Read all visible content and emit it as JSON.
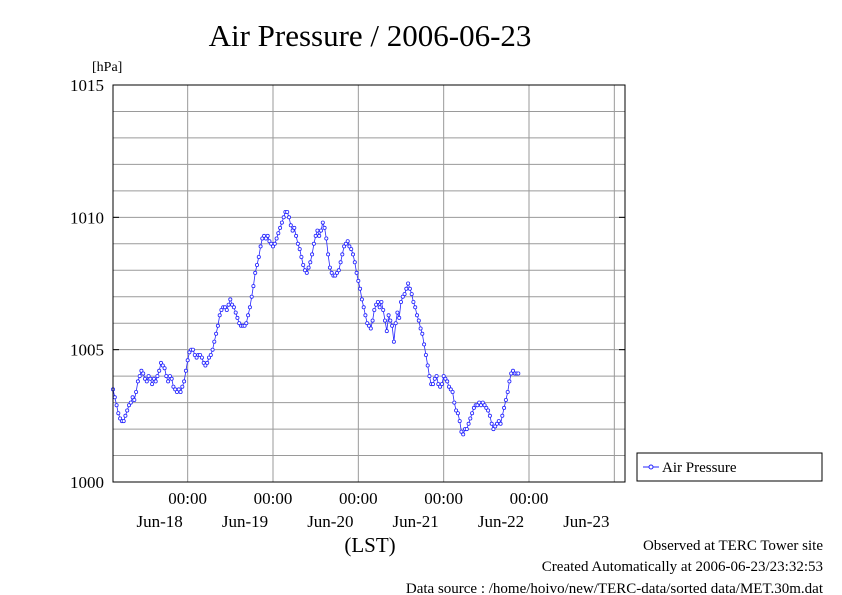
{
  "colors": {
    "series": "#2424ff",
    "grid": "#9a9a9a",
    "axis": "#000000"
  },
  "chart_data": {
    "type": "line",
    "title": "Air Pressure / 2006-06-23",
    "yunit": "[hPa]",
    "xlabel": "(LST)",
    "ylim": [
      1000,
      1015
    ],
    "yticks": [
      "1000",
      "1005",
      "1010",
      "1015"
    ],
    "ygrid_step": 1,
    "xlim": [
      0,
      144
    ],
    "xticks": [
      {
        "x": 21,
        "time": "00:00",
        "date": "Jun-18"
      },
      {
        "x": 45,
        "time": "00:00",
        "date": "Jun-19"
      },
      {
        "x": 69,
        "time": "00:00",
        "date": "Jun-20"
      },
      {
        "x": 93,
        "time": "00:00",
        "date": "Jun-21"
      },
      {
        "x": 117,
        "time": "00:00",
        "date": "Jun-22"
      },
      {
        "x": 141,
        "time": "",
        "date": "Jun-23"
      }
    ],
    "grid": true,
    "legend": "right",
    "series": [
      {
        "name": "Air Pressure",
        "x_step_hours": 0.5,
        "values": [
          1003.5,
          1003.2,
          1002.9,
          1002.6,
          1002.4,
          1002.3,
          1002.3,
          1002.5,
          1002.7,
          1002.9,
          1003.0,
          1003.2,
          1003.1,
          1003.4,
          1003.8,
          1004.0,
          1004.2,
          1004.1,
          1003.9,
          1003.8,
          1004.0,
          1003.9,
          1003.7,
          1003.9,
          1003.8,
          1004.0,
          1004.2,
          1004.5,
          1004.4,
          1004.3,
          1004.0,
          1003.8,
          1004.0,
          1003.9,
          1003.6,
          1003.5,
          1003.4,
          1003.5,
          1003.4,
          1003.6,
          1003.8,
          1004.2,
          1004.6,
          1004.9,
          1005.0,
          1005.0,
          1004.8,
          1004.7,
          1004.8,
          1004.8,
          1004.7,
          1004.5,
          1004.4,
          1004.5,
          1004.7,
          1004.8,
          1005.0,
          1005.3,
          1005.6,
          1005.9,
          1006.3,
          1006.5,
          1006.6,
          1006.6,
          1006.5,
          1006.7,
          1006.9,
          1006.7,
          1006.6,
          1006.4,
          1006.2,
          1006.0,
          1005.9,
          1005.9,
          1005.9,
          1006.0,
          1006.3,
          1006.6,
          1007.0,
          1007.4,
          1007.9,
          1008.2,
          1008.5,
          1008.9,
          1009.2,
          1009.3,
          1009.2,
          1009.3,
          1009.1,
          1009.0,
          1008.9,
          1009.0,
          1009.2,
          1009.4,
          1009.6,
          1009.8,
          1010.0,
          1010.2,
          1010.2,
          1010.0,
          1009.7,
          1009.5,
          1009.6,
          1009.3,
          1009.0,
          1008.8,
          1008.5,
          1008.2,
          1008.0,
          1007.9,
          1008.1,
          1008.3,
          1008.6,
          1009.0,
          1009.3,
          1009.5,
          1009.3,
          1009.5,
          1009.8,
          1009.6,
          1009.2,
          1008.6,
          1008.1,
          1007.9,
          1007.8,
          1007.8,
          1007.9,
          1008.0,
          1008.3,
          1008.6,
          1008.9,
          1009.0,
          1009.1,
          1008.9,
          1008.8,
          1008.6,
          1008.3,
          1007.9,
          1007.6,
          1007.3,
          1006.9,
          1006.6,
          1006.3,
          1006.0,
          1005.9,
          1005.8,
          1006.1,
          1006.5,
          1006.7,
          1006.8,
          1006.6,
          1006.8,
          1006.5,
          1006.1,
          1005.7,
          1006.3,
          1006.1,
          1005.9,
          1005.3,
          1006.0,
          1006.4,
          1006.2,
          1006.8,
          1007.0,
          1007.1,
          1007.3,
          1007.5,
          1007.3,
          1007.1,
          1006.8,
          1006.6,
          1006.3,
          1006.1,
          1005.8,
          1005.6,
          1005.2,
          1004.8,
          1004.4,
          1004.0,
          1003.7,
          1003.7,
          1003.9,
          1004.0,
          1003.7,
          1003.6,
          1003.7,
          1004.0,
          1003.9,
          1003.8,
          1003.6,
          1003.5,
          1003.4,
          1003.0,
          1002.7,
          1002.6,
          1002.3,
          1001.9,
          1001.8,
          1002.0,
          1002.0,
          1002.2,
          1002.4,
          1002.6,
          1002.8,
          1002.9,
          1002.9,
          1003.0,
          1002.9,
          1003.0,
          1002.9,
          1002.8,
          1002.7,
          1002.5,
          1002.2,
          1002.0,
          1002.1,
          1002.2,
          1002.3,
          1002.2,
          1002.5,
          1002.8,
          1003.1,
          1003.4,
          1003.8,
          1004.1,
          1004.2,
          1004.1,
          1004.1,
          1004.1
        ]
      }
    ]
  },
  "footer": {
    "observed": "Observed at TERC Tower site",
    "created": "Created Automatically at 2006-06-23/23:32:53",
    "source": "Data source : /home/hoivo/new/TERC-data/sorted  data/MET.30m.dat"
  }
}
